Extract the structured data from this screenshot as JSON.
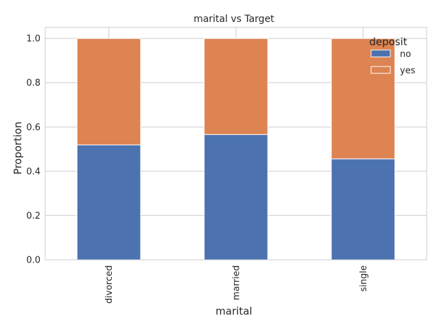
{
  "chart_data": {
    "type": "bar",
    "stacked": true,
    "title": "marital vs Target",
    "xlabel": "marital",
    "ylabel": "Proportion",
    "categories": [
      "divorced",
      "married",
      "single"
    ],
    "series": [
      {
        "name": "no",
        "values": [
          0.519,
          0.566,
          0.456
        ]
      },
      {
        "name": "yes",
        "values": [
          0.481,
          0.434,
          0.544
        ]
      }
    ],
    "ylim": [
      0,
      1.05
    ],
    "yticks": [
      0.0,
      0.2,
      0.4,
      0.6,
      0.8,
      1.0
    ],
    "ytick_labels": [
      "0.0",
      "0.2",
      "0.4",
      "0.6",
      "0.8",
      "1.0"
    ],
    "grid": true,
    "legend": {
      "title": "deposit",
      "position": "top-right"
    },
    "colors": {
      "no": "#4c72b0",
      "yes": "#dd8452"
    }
  }
}
